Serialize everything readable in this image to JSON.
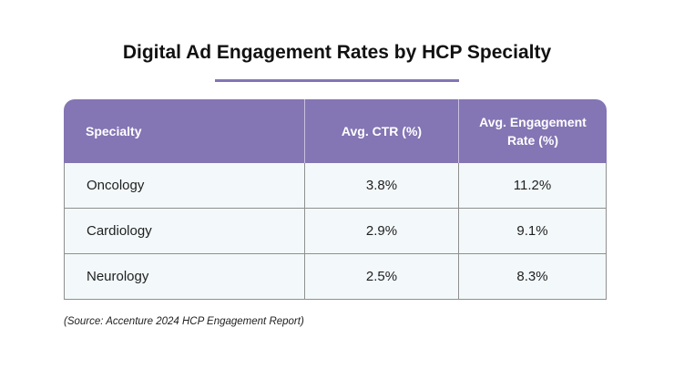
{
  "colors": {
    "header_bg": "#8475b4",
    "row_bg": "#f3f9fb",
    "underline": "#8475b4"
  },
  "chart_data": {
    "type": "table",
    "title": "Digital Ad Engagement Rates by HCP Specialty",
    "columns": [
      "Specialty",
      "Avg. CTR (%)",
      "Avg. Engagement Rate (%)"
    ],
    "rows": [
      [
        "Oncology",
        "3.8%",
        "11.2%"
      ],
      [
        "Cardiology",
        "2.9%",
        "9.1%"
      ],
      [
        "Neurology",
        "2.5%",
        "8.3%"
      ]
    ],
    "source": "(Source: Accenture 2024 HCP Engagement Report)"
  }
}
